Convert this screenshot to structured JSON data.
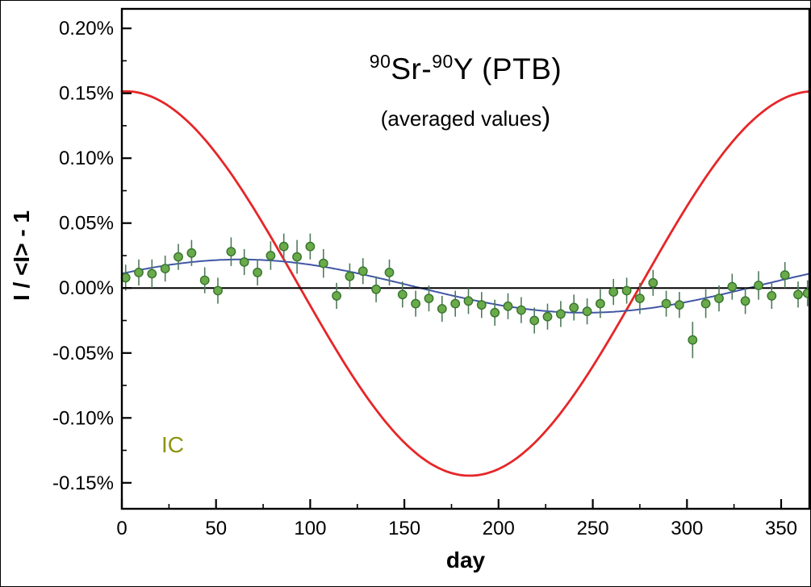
{
  "chart_data": {
    "type": "scatter",
    "title": "90Sr-90Y (PTB)",
    "title_parts": [
      {
        "text": "90",
        "sup": true
      },
      {
        "text": "Sr-",
        "sup": false
      },
      {
        "text": "90",
        "sup": true
      },
      {
        "text": "Y (PTB)",
        "sup": false
      }
    ],
    "subtitle": "(averaged values)",
    "subtitle_parts": {
      "main": "(averaged values",
      "close": ")"
    },
    "xlabel": "day",
    "ylabel": "I / <I> - 1",
    "y_unit": "%",
    "xlim": [
      0,
      365
    ],
    "ylim": [
      -0.17,
      0.215
    ],
    "grid": false,
    "legend": "none",
    "x_ticks": {
      "major": [
        0,
        50,
        100,
        150,
        200,
        250,
        300,
        350
      ],
      "minor": [
        25,
        75,
        125,
        175,
        225,
        275,
        325
      ]
    },
    "y_ticks": {
      "major": [
        {
          "value": 0.2,
          "label": "0.20%"
        },
        {
          "value": 0.15,
          "label": "0.15%"
        },
        {
          "value": 0.1,
          "label": "0.10%"
        },
        {
          "value": 0.05,
          "label": "0.05%"
        },
        {
          "value": 0.0,
          "label": "0.00%"
        },
        {
          "value": -0.05,
          "label": "-0.05%"
        },
        {
          "value": -0.1,
          "label": "-0.10%"
        },
        {
          "value": -0.15,
          "label": "-0.15%"
        }
      ],
      "minor": [
        0.175,
        0.125,
        0.075,
        0.025,
        -0.025,
        -0.075,
        -0.125
      ]
    },
    "zero_line": true,
    "axis_color": "#000000",
    "background": "#ffffff",
    "annotation": {
      "text": "IC",
      "x_day": 21,
      "y_value": -0.121,
      "color": "#8d9413"
    },
    "series": [
      {
        "name": "red-modulation-curve",
        "type": "line",
        "color": "#e62628",
        "width": 2.8,
        "model": {
          "kind": "cosine",
          "offset": 0.0035,
          "amplitude": 0.148,
          "peak_day": 2,
          "period": 365.25
        }
      },
      {
        "name": "blue-fit-curve",
        "type": "line",
        "color": "#4156a6",
        "width": 2,
        "model": {
          "kind": "cosine",
          "offset": 0.0015,
          "amplitude": 0.0205,
          "peak_day": 63,
          "period": 365.25
        }
      },
      {
        "name": "ic-measurements",
        "type": "scatter",
        "marker_color": "#6aaa4a",
        "marker_edge": "#35752c",
        "errorbar_color": "#4f7a5a",
        "marker_radius": 5.2,
        "points": [
          {
            "x": 2,
            "y": 0.008,
            "e": 0.01
          },
          {
            "x": 9,
            "y": 0.012,
            "e": 0.01
          },
          {
            "x": 16,
            "y": 0.011,
            "e": 0.011
          },
          {
            "x": 23,
            "y": 0.015,
            "e": 0.01
          },
          {
            "x": 30,
            "y": 0.024,
            "e": 0.01
          },
          {
            "x": 37,
            "y": 0.027,
            "e": 0.01
          },
          {
            "x": 44,
            "y": 0.006,
            "e": 0.01
          },
          {
            "x": 51,
            "y": -0.002,
            "e": 0.01
          },
          {
            "x": 58,
            "y": 0.028,
            "e": 0.011
          },
          {
            "x": 65,
            "y": 0.02,
            "e": 0.01
          },
          {
            "x": 72,
            "y": 0.012,
            "e": 0.01
          },
          {
            "x": 79,
            "y": 0.025,
            "e": 0.011
          },
          {
            "x": 86,
            "y": 0.032,
            "e": 0.01
          },
          {
            "x": 93,
            "y": 0.024,
            "e": 0.013
          },
          {
            "x": 100,
            "y": 0.032,
            "e": 0.01
          },
          {
            "x": 107,
            "y": 0.019,
            "e": 0.011
          },
          {
            "x": 114,
            "y": -0.006,
            "e": 0.01
          },
          {
            "x": 121,
            "y": 0.009,
            "e": 0.01
          },
          {
            "x": 128,
            "y": 0.013,
            "e": 0.01
          },
          {
            "x": 135,
            "y": -0.001,
            "e": 0.01
          },
          {
            "x": 142,
            "y": 0.012,
            "e": 0.01
          },
          {
            "x": 149,
            "y": -0.005,
            "e": 0.01
          },
          {
            "x": 156,
            "y": -0.012,
            "e": 0.01
          },
          {
            "x": 163,
            "y": -0.008,
            "e": 0.01
          },
          {
            "x": 170,
            "y": -0.016,
            "e": 0.01
          },
          {
            "x": 177,
            "y": -0.012,
            "e": 0.01
          },
          {
            "x": 184,
            "y": -0.01,
            "e": 0.01
          },
          {
            "x": 191,
            "y": -0.013,
            "e": 0.01
          },
          {
            "x": 198,
            "y": -0.019,
            "e": 0.01
          },
          {
            "x": 205,
            "y": -0.014,
            "e": 0.01
          },
          {
            "x": 212,
            "y": -0.017,
            "e": 0.01
          },
          {
            "x": 219,
            "y": -0.025,
            "e": 0.01
          },
          {
            "x": 226,
            "y": -0.022,
            "e": 0.01
          },
          {
            "x": 233,
            "y": -0.02,
            "e": 0.01
          },
          {
            "x": 240,
            "y": -0.015,
            "e": 0.01
          },
          {
            "x": 247,
            "y": -0.018,
            "e": 0.01
          },
          {
            "x": 254,
            "y": -0.012,
            "e": 0.011
          },
          {
            "x": 261,
            "y": -0.003,
            "e": 0.01
          },
          {
            "x": 268,
            "y": -0.002,
            "e": 0.01
          },
          {
            "x": 275,
            "y": -0.008,
            "e": 0.012
          },
          {
            "x": 282,
            "y": 0.004,
            "e": 0.01
          },
          {
            "x": 289,
            "y": -0.012,
            "e": 0.01
          },
          {
            "x": 296,
            "y": -0.013,
            "e": 0.01
          },
          {
            "x": 303,
            "y": -0.04,
            "e": 0.014
          },
          {
            "x": 310,
            "y": -0.012,
            "e": 0.011
          },
          {
            "x": 317,
            "y": -0.008,
            "e": 0.01
          },
          {
            "x": 324,
            "y": 0.001,
            "e": 0.01
          },
          {
            "x": 331,
            "y": -0.01,
            "e": 0.01
          },
          {
            "x": 338,
            "y": 0.002,
            "e": 0.011
          },
          {
            "x": 345,
            "y": -0.006,
            "e": 0.01
          },
          {
            "x": 352,
            "y": 0.01,
            "e": 0.01
          },
          {
            "x": 359,
            "y": -0.005,
            "e": 0.01
          },
          {
            "x": 364,
            "y": -0.004,
            "e": 0.01
          }
        ]
      }
    ]
  }
}
